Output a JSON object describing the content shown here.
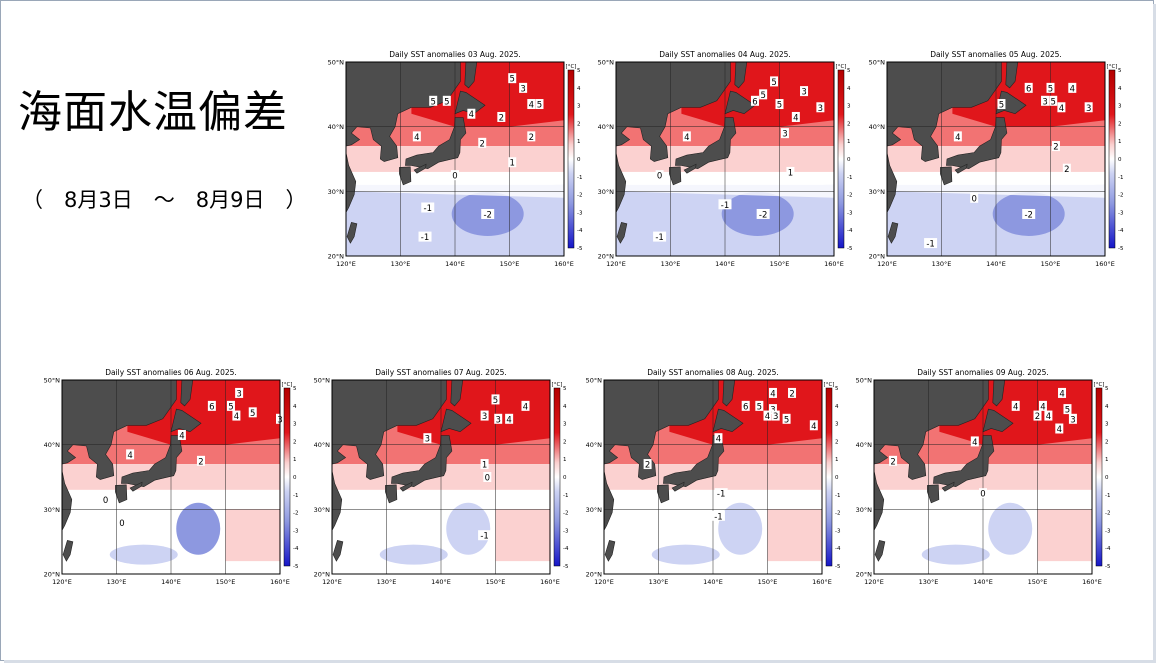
{
  "slide": {
    "title": "海面水温偏差",
    "subtitle": "（　8月3日　～　8月9日　）"
  },
  "colors": {
    "land": "#4d4d4d",
    "warm_strong": "#e0161b",
    "warm_mid": "#f27373",
    "warm_light": "#fbd1d0",
    "neutral": "#ffffff",
    "cool_light": "#cdd3f3",
    "cool_mid": "#8d98e0",
    "cool_strong": "#2c3bcc"
  },
  "chart_data": [
    {
      "type": "heatmap",
      "title": "Daily SST anomalies 03 Aug. 2025.",
      "x_ticks": [
        "120°E",
        "130°E",
        "140°E",
        "150°E",
        "160°E"
      ],
      "y_ticks": [
        "50°N",
        "40°N",
        "30°N",
        "20°N"
      ],
      "colorbar_unit": "[°C]",
      "colorbar_ticks": [
        "5",
        "4",
        "3",
        "2",
        "1",
        "0",
        "-1",
        "-2",
        "-3",
        "-4",
        "-5"
      ],
      "xlim": [
        120,
        160
      ],
      "ylim": [
        20,
        50
      ],
      "contour_labels": [
        {
          "text": "5",
          "lon": 150.5,
          "lat": 47.5
        },
        {
          "text": "5",
          "lon": 136,
          "lat": 44
        },
        {
          "text": "5",
          "lon": 138.5,
          "lat": 44
        },
        {
          "text": "3",
          "lon": 152.5,
          "lat": 46
        },
        {
          "text": "4",
          "lon": 154,
          "lat": 43.5
        },
        {
          "text": "5",
          "lon": 155.5,
          "lat": 43.5
        },
        {
          "text": "4",
          "lon": 143,
          "lat": 42
        },
        {
          "text": "2",
          "lon": 148.5,
          "lat": 41.5
        },
        {
          "text": "2",
          "lon": 154,
          "lat": 38.5
        },
        {
          "text": "4",
          "lon": 133,
          "lat": 38.5
        },
        {
          "text": "2",
          "lon": 145,
          "lat": 37.5
        },
        {
          "text": "1",
          "lon": 150.5,
          "lat": 34.5
        },
        {
          "text": "0",
          "lon": 140,
          "lat": 32.5
        },
        {
          "text": "-1",
          "lon": 135,
          "lat": 27.5
        },
        {
          "text": "-2",
          "lon": 146,
          "lat": 26.5
        },
        {
          "text": "-1",
          "lon": 134.5,
          "lat": 23
        }
      ]
    },
    {
      "type": "heatmap",
      "title": "Daily SST anomalies 04 Aug. 2025.",
      "x_ticks": [
        "120°E",
        "130°E",
        "140°E",
        "150°E",
        "160°E"
      ],
      "y_ticks": [
        "50°N",
        "40°N",
        "30°N",
        "20°N"
      ],
      "colorbar_unit": "[°C]",
      "colorbar_ticks": [
        "5",
        "4",
        "3",
        "2",
        "1",
        "0",
        "-1",
        "-2",
        "-3",
        "-4",
        "-5"
      ],
      "xlim": [
        120,
        160
      ],
      "ylim": [
        20,
        50
      ],
      "contour_labels": [
        {
          "text": "5",
          "lon": 149,
          "lat": 47
        },
        {
          "text": "5",
          "lon": 147,
          "lat": 45
        },
        {
          "text": "6",
          "lon": 145.5,
          "lat": 44
        },
        {
          "text": "3",
          "lon": 154.5,
          "lat": 45.5
        },
        {
          "text": "5",
          "lon": 150,
          "lat": 43.5
        },
        {
          "text": "3",
          "lon": 157.5,
          "lat": 43
        },
        {
          "text": "4",
          "lon": 153,
          "lat": 41.5
        },
        {
          "text": "4",
          "lon": 133,
          "lat": 38.5
        },
        {
          "text": "3",
          "lon": 151,
          "lat": 39
        },
        {
          "text": "0",
          "lon": 128,
          "lat": 32.5
        },
        {
          "text": "1",
          "lon": 152,
          "lat": 33
        },
        {
          "text": "-1",
          "lon": 140,
          "lat": 28
        },
        {
          "text": "-2",
          "lon": 147,
          "lat": 26.5
        },
        {
          "text": "-1",
          "lon": 128,
          "lat": 23
        }
      ]
    },
    {
      "type": "heatmap",
      "title": "Daily SST anomalies 05 Aug. 2025.",
      "x_ticks": [
        "120°E",
        "130°E",
        "140°E",
        "150°E",
        "160°E"
      ],
      "y_ticks": [
        "50°N",
        "40°N",
        "30°N",
        "20°N"
      ],
      "colorbar_unit": "[°C]",
      "colorbar_ticks": [
        "5",
        "4",
        "3",
        "2",
        "1",
        "0",
        "-1",
        "-2",
        "-3",
        "-4",
        "-5"
      ],
      "xlim": [
        120,
        160
      ],
      "ylim": [
        20,
        50
      ],
      "contour_labels": [
        {
          "text": "6",
          "lon": 146,
          "lat": 46
        },
        {
          "text": "5",
          "lon": 150,
          "lat": 46
        },
        {
          "text": "4",
          "lon": 154,
          "lat": 46
        },
        {
          "text": "5",
          "lon": 141,
          "lat": 43.5
        },
        {
          "text": "3",
          "lon": 149,
          "lat": 44
        },
        {
          "text": "5",
          "lon": 150.5,
          "lat": 44
        },
        {
          "text": "4",
          "lon": 152,
          "lat": 43
        },
        {
          "text": "3",
          "lon": 157,
          "lat": 43
        },
        {
          "text": "4",
          "lon": 133,
          "lat": 38.5
        },
        {
          "text": "2",
          "lon": 151,
          "lat": 37
        },
        {
          "text": "2",
          "lon": 153,
          "lat": 33.5
        },
        {
          "text": "0",
          "lon": 136,
          "lat": 29
        },
        {
          "text": "-2",
          "lon": 146,
          "lat": 26.5
        },
        {
          "text": "-1",
          "lon": 128,
          "lat": 22
        }
      ]
    },
    {
      "type": "heatmap",
      "title": "Daily SST anomalies 06 Aug. 2025.",
      "x_ticks": [
        "120°E",
        "130°E",
        "140°E",
        "150°E",
        "160°E"
      ],
      "y_ticks": [
        "50°N",
        "40°N",
        "30°N",
        "20°N"
      ],
      "colorbar_unit": "[°C]",
      "colorbar_ticks": [
        "5",
        "4",
        "3",
        "2",
        "1",
        "0",
        "-1",
        "-2",
        "-3",
        "-4",
        "-5"
      ],
      "xlim": [
        120,
        160
      ],
      "ylim": [
        20,
        50
      ],
      "contour_labels": [
        {
          "text": "3",
          "lon": 152.5,
          "lat": 48
        },
        {
          "text": "6",
          "lon": 147.5,
          "lat": 46
        },
        {
          "text": "5",
          "lon": 151,
          "lat": 46
        },
        {
          "text": "5",
          "lon": 155,
          "lat": 45
        },
        {
          "text": "4",
          "lon": 152,
          "lat": 44.5
        },
        {
          "text": "3",
          "lon": 160,
          "lat": 44
        },
        {
          "text": "4",
          "lon": 142,
          "lat": 41.5
        },
        {
          "text": "4",
          "lon": 132.5,
          "lat": 38.5
        },
        {
          "text": "2",
          "lon": 145.5,
          "lat": 37.5
        },
        {
          "text": "0",
          "lon": 128,
          "lat": 31.5
        },
        {
          "text": "0",
          "lon": 131,
          "lat": 28
        }
      ]
    },
    {
      "type": "heatmap",
      "title": "Daily SST anomalies 07 Aug. 2025.",
      "x_ticks": [
        "120°E",
        "130°E",
        "140°E",
        "150°E",
        "160°E"
      ],
      "y_ticks": [
        "50°N",
        "40°N",
        "30°N",
        "20°N"
      ],
      "colorbar_unit": "[°C]",
      "colorbar_ticks": [
        "5",
        "4",
        "3",
        "2",
        "1",
        "0",
        "-1",
        "-2",
        "-3",
        "-4",
        "-5"
      ],
      "xlim": [
        120,
        160
      ],
      "ylim": [
        20,
        50
      ],
      "contour_labels": [
        {
          "text": "5",
          "lon": 150,
          "lat": 47
        },
        {
          "text": "4",
          "lon": 155.5,
          "lat": 46
        },
        {
          "text": "3",
          "lon": 148,
          "lat": 44.5
        },
        {
          "text": "3",
          "lon": 150.5,
          "lat": 44
        },
        {
          "text": "4",
          "lon": 152.5,
          "lat": 44
        },
        {
          "text": "3",
          "lon": 137.5,
          "lat": 41
        },
        {
          "text": "1",
          "lon": 148,
          "lat": 37
        },
        {
          "text": "0",
          "lon": 148.5,
          "lat": 35
        },
        {
          "text": "-1",
          "lon": 148,
          "lat": 26
        }
      ]
    },
    {
      "type": "heatmap",
      "title": "Daily SST anomalies 08 Aug. 2025.",
      "x_ticks": [
        "120°E",
        "130°E",
        "140°E",
        "150°E",
        "160°E"
      ],
      "y_ticks": [
        "50°N",
        "40°N",
        "30°N",
        "20°N"
      ],
      "colorbar_unit": "[°C]",
      "colorbar_ticks": [
        "5",
        "4",
        "3",
        "2",
        "1",
        "0",
        "-1",
        "-2",
        "-3",
        "-4",
        "-5"
      ],
      "xlim": [
        120,
        160
      ],
      "ylim": [
        20,
        50
      ],
      "contour_labels": [
        {
          "text": "4",
          "lon": 151,
          "lat": 48
        },
        {
          "text": "2",
          "lon": 154.5,
          "lat": 48
        },
        {
          "text": "6",
          "lon": 146,
          "lat": 46
        },
        {
          "text": "5",
          "lon": 148.5,
          "lat": 46
        },
        {
          "text": "3",
          "lon": 151,
          "lat": 45.5
        },
        {
          "text": "4",
          "lon": 150,
          "lat": 44.5
        },
        {
          "text": "3",
          "lon": 151.5,
          "lat": 44.5
        },
        {
          "text": "5",
          "lon": 153.5,
          "lat": 44
        },
        {
          "text": "4",
          "lon": 158.5,
          "lat": 43
        },
        {
          "text": "4",
          "lon": 141,
          "lat": 41
        },
        {
          "text": "2",
          "lon": 128,
          "lat": 37
        },
        {
          "text": "-1",
          "lon": 141.5,
          "lat": 32.5
        },
        {
          "text": "-1",
          "lon": 141,
          "lat": 29
        }
      ]
    },
    {
      "type": "heatmap",
      "title": "Daily SST anomalies 09 Aug. 2025.",
      "x_ticks": [
        "120°E",
        "130°E",
        "140°E",
        "150°E",
        "160°E"
      ],
      "y_ticks": [
        "50°N",
        "40°N",
        "30°N",
        "20°N"
      ],
      "colorbar_unit": "[°C]",
      "colorbar_ticks": [
        "5",
        "4",
        "3",
        "2",
        "1",
        "0",
        "-1",
        "-2",
        "-3",
        "-4",
        "-5"
      ],
      "xlim": [
        120,
        160
      ],
      "ylim": [
        20,
        50
      ],
      "contour_labels": [
        {
          "text": "4",
          "lon": 154.5,
          "lat": 48
        },
        {
          "text": "4",
          "lon": 146,
          "lat": 46
        },
        {
          "text": "4",
          "lon": 151,
          "lat": 46
        },
        {
          "text": "5",
          "lon": 155.5,
          "lat": 45.5
        },
        {
          "text": "2",
          "lon": 150,
          "lat": 44.5
        },
        {
          "text": "4",
          "lon": 152,
          "lat": 44.5
        },
        {
          "text": "3",
          "lon": 156.5,
          "lat": 44
        },
        {
          "text": "4",
          "lon": 154,
          "lat": 42.5
        },
        {
          "text": "4",
          "lon": 138.5,
          "lat": 40.5
        },
        {
          "text": "2",
          "lon": 123.5,
          "lat": 37.5
        },
        {
          "text": "0",
          "lon": 140,
          "lat": 32.5
        }
      ]
    }
  ]
}
